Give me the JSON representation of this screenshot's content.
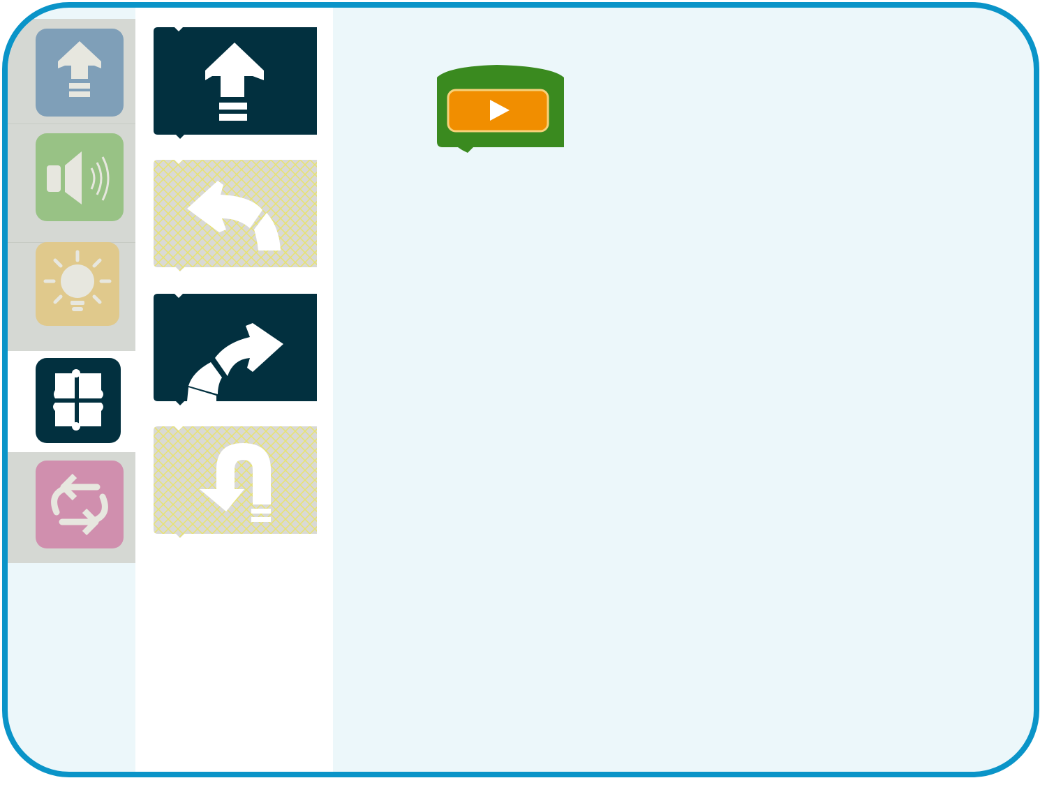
{
  "colors": {
    "frame_border": "#0a94c8",
    "workspace_bg": "#ecf7fa",
    "category_bar_bg": "#d5d8d3",
    "palette_bg": "#ffffff",
    "block_enabled": "#02303f",
    "block_disabled_pattern": "#d9d9d5",
    "block_disabled_hatch": "#e8e36f",
    "start_block_green": "#3a8a1f",
    "start_button_orange": "#f18e00"
  },
  "categories": [
    {
      "name": "motion",
      "icon": "arrow-up-icon",
      "color": "#7f9fb8",
      "selected": false
    },
    {
      "name": "sound",
      "icon": "speaker-icon",
      "color": "#98c285",
      "selected": false
    },
    {
      "name": "light",
      "icon": "light-bulb-icon",
      "color": "#e0c98c",
      "selected": false
    },
    {
      "name": "drive",
      "icon": "robot-top-view-icon",
      "color": "#02303f",
      "selected": true
    },
    {
      "name": "loops",
      "icon": "repeat-icon",
      "color": "#d08fae",
      "selected": false
    }
  ],
  "palette_blocks": [
    {
      "name": "move-forward",
      "icon": "arrow-up-icon",
      "enabled": true
    },
    {
      "name": "turn-left",
      "icon": "curve-left-arrow-icon",
      "enabled": false
    },
    {
      "name": "turn-right",
      "icon": "curve-right-arrow-icon",
      "enabled": true
    },
    {
      "name": "u-turn",
      "icon": "u-turn-icon",
      "enabled": false
    }
  ],
  "workspace": {
    "start_block": {
      "icon": "play-icon"
    }
  }
}
